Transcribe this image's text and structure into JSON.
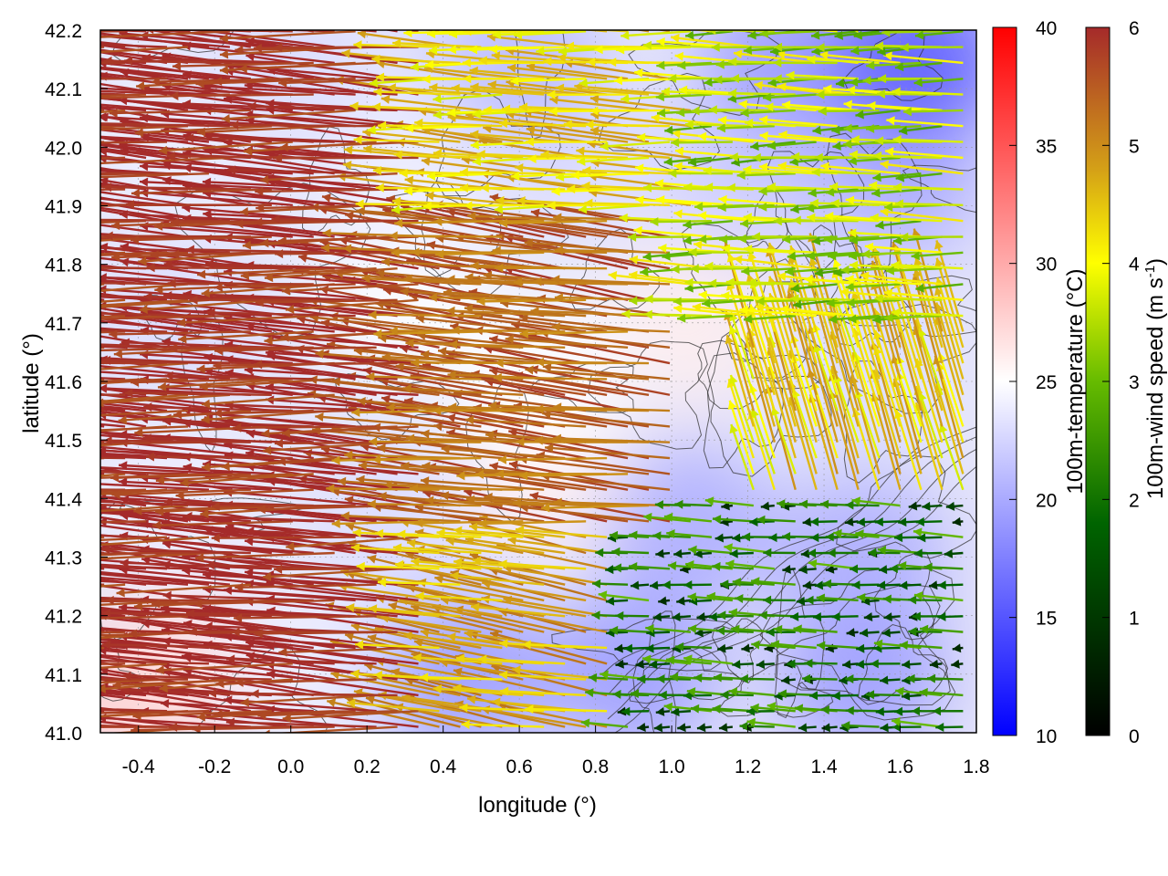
{
  "chart_data": {
    "type": "heatmap",
    "xlabel": "longitude (°)",
    "ylabel": "latitude (°)",
    "xlim": [
      -0.5,
      1.8
    ],
    "ylim": [
      41.0,
      42.2
    ],
    "x_ticks": [
      "-0.4",
      "-0.2",
      "0.0",
      "0.2",
      "0.4",
      "0.6",
      "0.8",
      "1.0",
      "1.2",
      "1.4",
      "1.6",
      "1.8"
    ],
    "x_tick_values": [
      -0.4,
      -0.2,
      0.0,
      0.2,
      0.4,
      0.6,
      0.8,
      1.0,
      1.2,
      1.4,
      1.6,
      1.8
    ],
    "y_ticks": [
      "41.0",
      "41.1",
      "41.2",
      "41.3",
      "41.4",
      "41.5",
      "41.6",
      "41.7",
      "41.8",
      "41.9",
      "42.0",
      "42.1",
      "42.2"
    ],
    "y_tick_values": [
      41.0,
      41.1,
      41.2,
      41.3,
      41.4,
      41.5,
      41.6,
      41.7,
      41.8,
      41.9,
      42.0,
      42.1,
      42.2
    ],
    "grid": true,
    "temperature_colorbar": {
      "label": "100m-temperature (°C)",
      "range": [
        10,
        40
      ],
      "ticks": [
        "10",
        "15",
        "20",
        "25",
        "30",
        "35",
        "40"
      ],
      "tick_values": [
        10,
        15,
        20,
        25,
        30,
        35,
        40
      ],
      "colors": [
        "#0000ff",
        "#ffffff",
        "#ff0000"
      ]
    },
    "wind_colorbar": {
      "label_main": "100m-wind speed (m s",
      "label_sup": "-1",
      "label_end": ")",
      "range": [
        0,
        6
      ],
      "ticks": [
        "0",
        "1",
        "2",
        "3",
        "4",
        "5",
        "6"
      ],
      "tick_values": [
        0,
        1,
        2,
        3,
        4,
        5,
        6
      ],
      "colors": [
        "#000000",
        "#006400",
        "#66bb00",
        "#ffff00",
        "#d4a017",
        "#b5651d",
        "#a52a2a"
      ]
    },
    "temperature_regions": [
      {
        "lon": -0.45,
        "lat": 41.05,
        "temp": 28
      },
      {
        "lon": -0.3,
        "lat": 41.1,
        "temp": 27
      },
      {
        "lon": 0.05,
        "lat": 41.1,
        "temp": 24
      },
      {
        "lon": 0.45,
        "lat": 41.1,
        "temp": 19
      },
      {
        "lon": 0.9,
        "lat": 41.1,
        "temp": 19
      },
      {
        "lon": 1.5,
        "lat": 41.1,
        "temp": 19
      },
      {
        "lon": -0.3,
        "lat": 41.4,
        "temp": 24
      },
      {
        "lon": 0.3,
        "lat": 41.35,
        "temp": 23
      },
      {
        "lon": 0.65,
        "lat": 41.45,
        "temp": 26
      },
      {
        "lon": 1.05,
        "lat": 41.35,
        "temp": 20
      },
      {
        "lon": 1.5,
        "lat": 41.3,
        "temp": 20
      },
      {
        "lon": -0.3,
        "lat": 41.7,
        "temp": 23
      },
      {
        "lon": 0.3,
        "lat": 41.75,
        "temp": 25
      },
      {
        "lon": 0.65,
        "lat": 41.6,
        "temp": 25
      },
      {
        "lon": 1.05,
        "lat": 41.7,
        "temp": 26
      },
      {
        "lon": 1.5,
        "lat": 41.65,
        "temp": 23
      },
      {
        "lon": -0.3,
        "lat": 42.0,
        "temp": 24
      },
      {
        "lon": 0.3,
        "lat": 41.95,
        "temp": 24
      },
      {
        "lon": 0.75,
        "lat": 42.0,
        "temp": 23
      },
      {
        "lon": 1.2,
        "lat": 41.95,
        "temp": 22
      },
      {
        "lon": 1.6,
        "lat": 41.95,
        "temp": 20
      },
      {
        "lon": 0.0,
        "lat": 42.15,
        "temp": 23
      },
      {
        "lon": 0.6,
        "lat": 42.15,
        "temp": 21
      },
      {
        "lon": 1.3,
        "lat": 42.15,
        "temp": 19
      },
      {
        "lon": 1.65,
        "lat": 42.15,
        "temp": 15
      }
    ],
    "wind_regions": [
      {
        "lon_min": -0.5,
        "lon_max": 0.35,
        "lat_min": 41.0,
        "lat_max": 42.2,
        "speed": 6,
        "u": -1.0,
        "v": 0.05
      },
      {
        "lon_min": 0.35,
        "lon_max": 1.05,
        "lat_min": 41.35,
        "lat_max": 41.9,
        "speed": 5,
        "u": -1.0,
        "v": 0.1
      },
      {
        "lon_min": 0.35,
        "lon_max": 0.85,
        "lat_min": 41.0,
        "lat_max": 41.35,
        "speed": 4,
        "u": -1.0,
        "v": 0.15
      },
      {
        "lon_min": 0.35,
        "lon_max": 1.1,
        "lat_min": 41.9,
        "lat_max": 42.2,
        "speed": 3.5,
        "u": -1.0,
        "v": 0.05
      },
      {
        "lon_min": 1.05,
        "lon_max": 1.8,
        "lat_min": 41.7,
        "lat_max": 42.2,
        "speed": 2.5,
        "u": -1.0,
        "v": 0.0
      },
      {
        "lon_min": 1.2,
        "lon_max": 1.8,
        "lat_min": 41.4,
        "lat_max": 41.7,
        "speed": 3.5,
        "u": -0.3,
        "v": 1.0
      },
      {
        "lon_min": 0.85,
        "lon_max": 1.8,
        "lat_min": 41.0,
        "lat_max": 41.4,
        "speed": 1.2,
        "u": -1.0,
        "v": 0.0
      }
    ],
    "contours": true
  }
}
